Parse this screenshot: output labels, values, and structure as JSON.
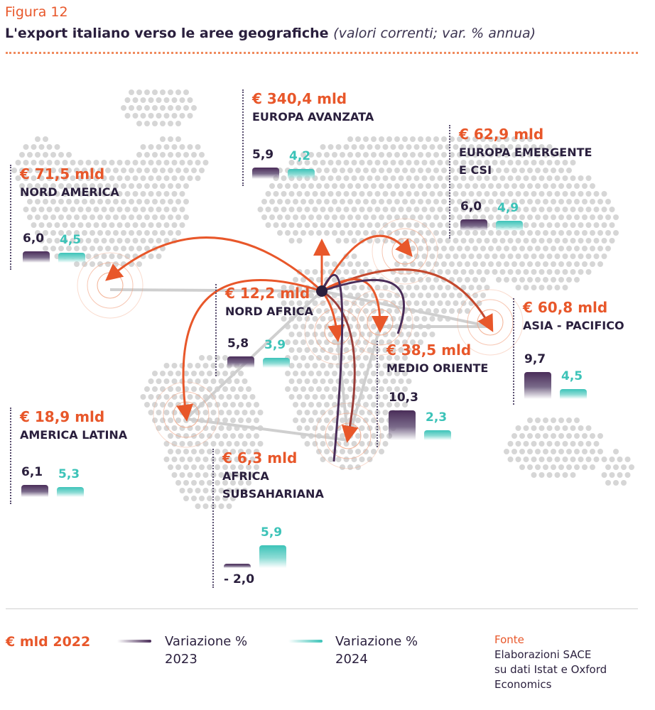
{
  "figure_label": "Figura 12",
  "title": "L'export italiano verso le aree geografiche",
  "subtitle": "(valori correnti; var. % annua)",
  "colors": {
    "accent": "#e8572a",
    "var2023": "#4a2d59",
    "var2024": "#3cc3b8",
    "map_dot": "#d6d6d6"
  },
  "chart_data": {
    "type": "bar",
    "categories": [
      "Europa Avanzata",
      "Europa Emergente e CSI",
      "Nord America",
      "Nord Africa",
      "Asia - Pacifico",
      "Medio Oriente",
      "America Latina",
      "Africa Subsahariana"
    ],
    "export_2022": [
      340.4,
      62.9,
      71.5,
      12.2,
      60.8,
      38.5,
      18.9,
      6.3
    ],
    "series": [
      {
        "name": "Variazione % 2023",
        "values": [
          5.9,
          6.0,
          6.0,
          5.8,
          9.7,
          10.3,
          6.1,
          -2.0
        ]
      },
      {
        "name": "Variazione % 2024",
        "values": [
          4.2,
          4.9,
          4.5,
          3.9,
          4.5,
          2.3,
          5.3,
          5.9
        ]
      }
    ]
  },
  "regions": [
    {
      "amount": "€ 340,4 mld",
      "name_lines": [
        "EUROPA AVANZATA"
      ],
      "v2023": "5,9",
      "v2024": "4,2"
    },
    {
      "amount": "€ 62,9 mld",
      "name_lines": [
        "EUROPA EMERGENTE",
        "E CSI"
      ],
      "v2023": "6,0",
      "v2024": "4,9"
    },
    {
      "amount": "€ 71,5 mld",
      "name_lines": [
        "NORD AMERICA"
      ],
      "v2023": "6,0",
      "v2024": "4,5"
    },
    {
      "amount": "€ 12,2 mld",
      "name_lines": [
        "NORD AFRICA"
      ],
      "v2023": "5,8",
      "v2024": "3,9"
    },
    {
      "amount": "€ 60,8 mld",
      "name_lines": [
        "ASIA - PACIFICO"
      ],
      "v2023": "9,7",
      "v2024": "4,5"
    },
    {
      "amount": "€ 38,5 mld",
      "name_lines": [
        "MEDIO ORIENTE"
      ],
      "v2023": "10,3",
      "v2024": "2,3"
    },
    {
      "amount": "€ 18,9 mld",
      "name_lines": [
        "AMERICA LATINA"
      ],
      "v2023": "6,1",
      "v2024": "5,3"
    },
    {
      "amount": "€ 6,3 mld",
      "name_lines": [
        "AFRICA",
        "SUBSAHARIANA"
      ],
      "v2023": "- 2,0",
      "v2024": "5,9"
    }
  ],
  "legend": {
    "amount_label": "€ mld 2022",
    "var2023_lines": [
      "Variazione %",
      "2023"
    ],
    "var2024_lines": [
      "Variazione %",
      "2024"
    ]
  },
  "source": {
    "heading": "Fonte",
    "lines": [
      "Elaborazioni SACE",
      "su dati Istat e Oxford",
      "Economics"
    ]
  }
}
